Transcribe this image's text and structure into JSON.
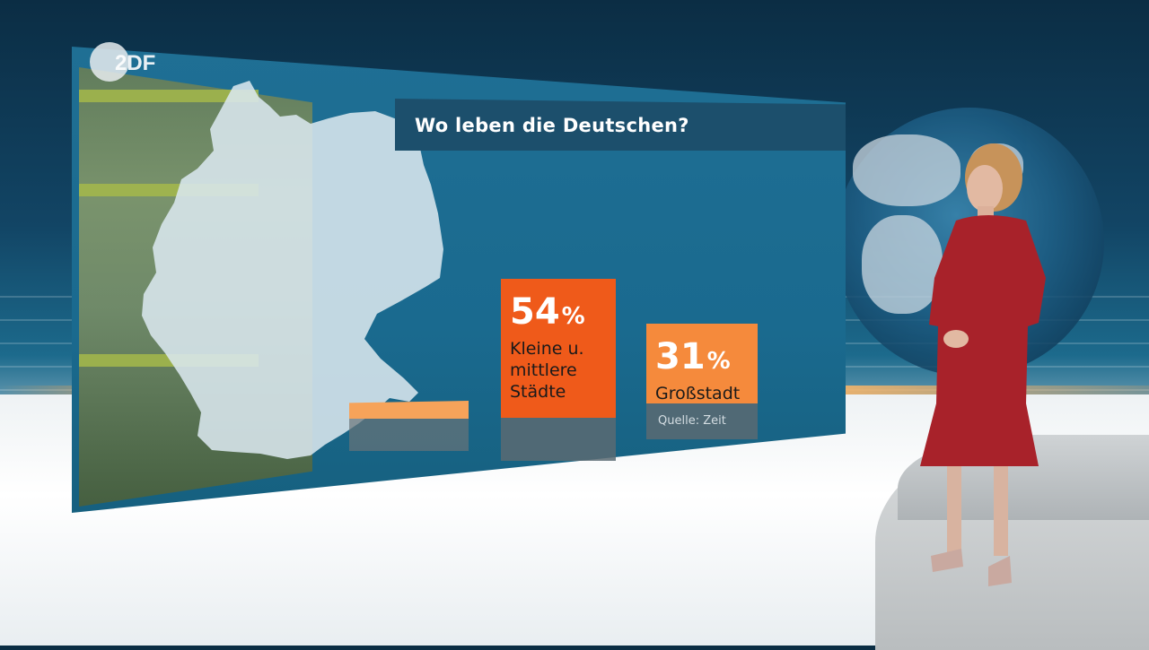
{
  "broadcaster": {
    "logo_text": "2DF"
  },
  "chart_data": {
    "type": "bar",
    "title": "Wo leben die Deutschen?",
    "unit": "%",
    "categories": [
      "Kleine u. mittlere Städte",
      "Großstadt"
    ],
    "values": [
      54,
      31
    ],
    "bars": [
      {
        "value": "54",
        "percent_sign": "%",
        "label_lines": [
          "Kleine u.",
          "mittlere",
          "Städte"
        ],
        "color": "#ef5a1a"
      },
      {
        "value": "31",
        "percent_sign": "%",
        "label_lines": [
          "Großstadt"
        ],
        "color": "#f58a3c"
      }
    ],
    "source": "Quelle: Zeit",
    "ylim": [
      0,
      60
    ]
  },
  "colors": {
    "screen_blue": "#1a6a8f",
    "title_bar": "#1c4f6c",
    "orange_primary": "#ef5a1a",
    "orange_secondary": "#f58a3c",
    "map_fill": "#d9e7ee"
  }
}
